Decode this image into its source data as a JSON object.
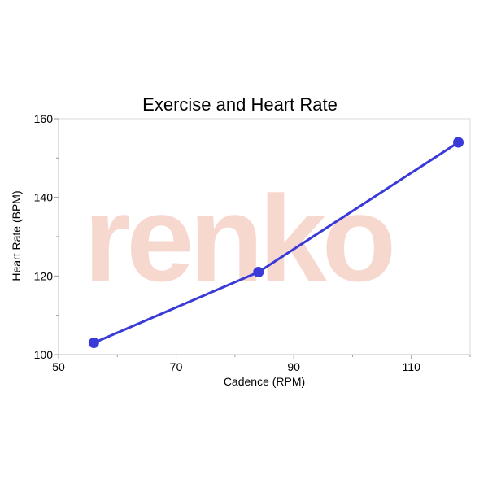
{
  "chart_data": {
    "type": "line",
    "title": "Exercise and Heart Rate",
    "xlabel": "Cadence (RPM)",
    "ylabel": "Heart Rate (BPM)",
    "xlim": [
      50,
      120
    ],
    "ylim": [
      100,
      160
    ],
    "x_ticks": [
      50,
      70,
      90,
      110
    ],
    "y_ticks": [
      100,
      120,
      140,
      160
    ],
    "grid": false,
    "watermark_text": "renko",
    "series": [
      {
        "color": "#3a3ad8",
        "x": [
          56,
          84,
          118
        ],
        "y": [
          103,
          121,
          154
        ]
      }
    ]
  }
}
